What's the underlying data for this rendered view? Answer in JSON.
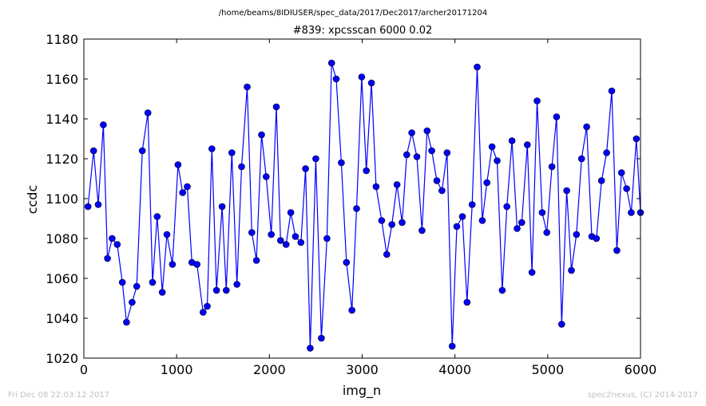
{
  "header": {
    "path": "/home/beams/8IDIUSER/spec_data/2017/Dec2017/archer20171204"
  },
  "footer": {
    "left": "Fri Dec 08 22:03:12 2017",
    "right": "spec2nexus, (C) 2014-2017"
  },
  "colors": {
    "series": "#0000ff",
    "footer_text": "#c0c0c0"
  },
  "chart_data": {
    "type": "line",
    "title": "#839: xpcsscan 6000 0.02",
    "xlabel": "img_n",
    "ylabel": "ccdc",
    "xlim": [
      0,
      6000
    ],
    "ylim": [
      1020,
      1180
    ],
    "xticks": [
      0,
      1000,
      2000,
      3000,
      4000,
      5000,
      6000
    ],
    "yticks": [
      1020,
      1040,
      1060,
      1080,
      1100,
      1120,
      1140,
      1160,
      1180
    ],
    "grid": false,
    "marker": "circle",
    "series": [
      {
        "x": [
          45,
          105,
          155,
          210,
          255,
          305,
          360,
          415,
          460,
          520,
          570,
          630,
          690,
          740,
          790,
          845,
          895,
          955,
          1015,
          1065,
          1115,
          1165,
          1220,
          1285,
          1330,
          1380,
          1430,
          1490,
          1535,
          1595,
          1650,
          1700,
          1760,
          1810,
          1860,
          1915,
          1965,
          2020,
          2075,
          2120,
          2180,
          2230,
          2280,
          2340,
          2390,
          2440,
          2500,
          2560,
          2620,
          2670,
          2720,
          2775,
          2830,
          2890,
          2940,
          2995,
          3045,
          3100,
          3150,
          3210,
          3265,
          3320,
          3375,
          3430,
          3480,
          3535,
          3590,
          3645,
          3700,
          3750,
          3805,
          3860,
          3915,
          3970,
          4020,
          4080,
          4130,
          4185,
          4240,
          4295,
          4345,
          4400,
          4455,
          4510,
          4560,
          4615,
          4670,
          4720,
          4780,
          4830,
          4885,
          4940,
          4990,
          5045,
          5095,
          5150,
          5205,
          5255,
          5310,
          5365,
          5420,
          5475,
          5525,
          5580,
          5635,
          5690,
          5745,
          5795,
          5850,
          5900,
          5955,
          6000
        ],
        "y": [
          1096,
          1124,
          1097,
          1137,
          1070,
          1080,
          1077,
          1058,
          1038,
          1048,
          1056,
          1124,
          1143,
          1058,
          1091,
          1053,
          1082,
          1067,
          1117,
          1103,
          1106,
          1068,
          1067,
          1043,
          1046,
          1125,
          1054,
          1096,
          1054,
          1123,
          1057,
          1116,
          1156,
          1083,
          1069,
          1132,
          1111,
          1082,
          1146,
          1079,
          1077,
          1093,
          1081,
          1078,
          1115,
          1025,
          1120,
          1030,
          1080,
          1168,
          1160,
          1118,
          1068,
          1044,
          1095,
          1161,
          1114,
          1158,
          1106,
          1089,
          1072,
          1087,
          1107,
          1088,
          1122,
          1133,
          1121,
          1084,
          1134,
          1124,
          1109,
          1104,
          1123,
          1026,
          1086,
          1091,
          1048,
          1097,
          1166,
          1089,
          1108,
          1126,
          1119,
          1054,
          1096,
          1129,
          1085,
          1088,
          1127,
          1063,
          1149,
          1093,
          1083,
          1116,
          1141,
          1037,
          1104,
          1064,
          1082,
          1120,
          1136,
          1081,
          1080,
          1109,
          1123,
          1154,
          1074,
          1113,
          1105,
          1093,
          1130,
          1093
        ]
      }
    ]
  }
}
